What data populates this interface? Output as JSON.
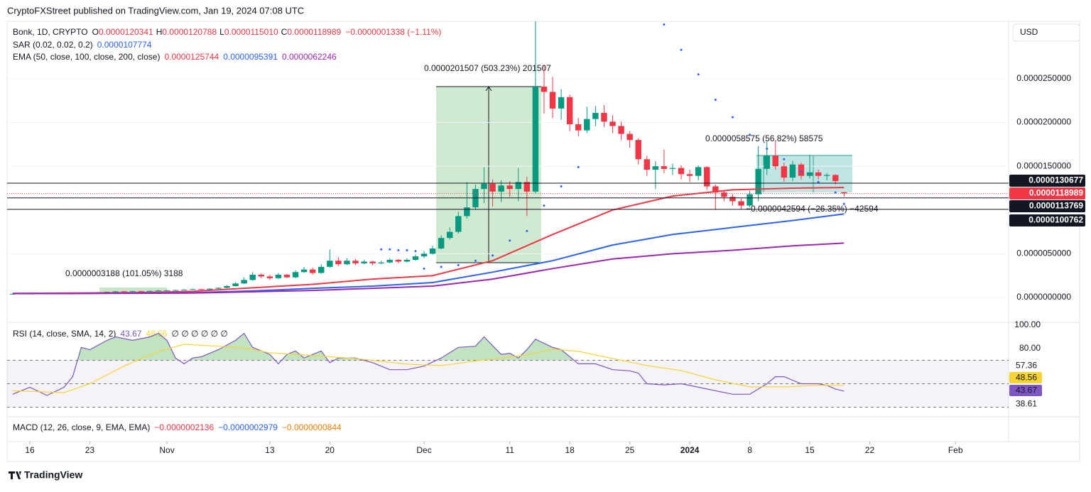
{
  "publisher": "CryptoFXStreet published on TradingView.com, Jan 19, 2024 07:08 UTC",
  "legend": {
    "symbol": "Bonk, 1D, CRYPTO",
    "ohlc": [
      {
        "key": "O",
        "value": "0.0000120341"
      },
      {
        "key": "H",
        "value": "0.0000120788"
      },
      {
        "key": "L",
        "value": "0.0000115010"
      },
      {
        "key": "C",
        "value": "0.0000118989"
      }
    ],
    "change": "−0.0000001338 (−1.11%)",
    "sar": {
      "label": "SAR (0.02, 0.02, 0.2)",
      "value": "0.0000107774"
    },
    "ema": {
      "label": "EMA (50, close, 100, close, 200, close)",
      "values": [
        "0.0000125744",
        "0.0000095391",
        "0.0000062246"
      ]
    }
  },
  "currency": "USD",
  "annotations": [
    "0.0000201507 (503.23%) 201507",
    "0.0000003188 (101.05%) 3188",
    "0.0000058575 (56.82%) 58575",
    "−0.0000042594 (−26.35%) −42594"
  ],
  "rsi_legend": {
    "label": "RSI (14, close, SMA, 14, 2)",
    "values": [
      "43.67",
      "48.56"
    ],
    "extra": "∅ ∅ ∅ ∅ ∅ ∅"
  },
  "macd_legend": {
    "label": "MACD (12, 26, close, 9, EMA, EMA)",
    "values": [
      "−0.0000002136",
      "−0.0000002979",
      "−0.0000000844"
    ]
  },
  "footer": "TradingView",
  "chart_data": [
    {
      "type": "candlestick",
      "up_color": "#089981",
      "down_color": "#f23645",
      "grid": true,
      "xlim": [
        -0.65,
        116.2
      ],
      "ylim": [
        -2.76e-06,
        3.157e-05
      ],
      "xticks": [
        {
          "value": 2,
          "label": "16"
        },
        {
          "value": 9,
          "label": "23"
        },
        {
          "value": 18,
          "label": "Nov"
        },
        {
          "value": 30,
          "label": "13"
        },
        {
          "value": 37,
          "label": "20"
        },
        {
          "value": 48,
          "label": "Dec"
        },
        {
          "value": 58,
          "label": "11"
        },
        {
          "value": 65,
          "label": "18"
        },
        {
          "value": 72,
          "label": "25"
        },
        {
          "value": 79,
          "label": "2024",
          "bold": true
        },
        {
          "value": 86,
          "label": "8"
        },
        {
          "value": 93,
          "label": "15"
        },
        {
          "value": 100,
          "label": "22"
        },
        {
          "value": 110,
          "label": "Feb"
        }
      ],
      "yticks": [
        {
          "value": 2.5e-05,
          "label": "0.0000250000"
        },
        {
          "value": 2e-05,
          "label": "0.0000200000"
        },
        {
          "value": 1.5e-05,
          "label": "0.0000150000"
        },
        {
          "value": 5e-06,
          "label": "0.0000050000"
        },
        {
          "value": 0,
          "label": "0.0000000000"
        }
      ],
      "open": [
        4e-07,
        4.2e-07,
        4.4e-07,
        4.3e-07,
        4.5e-07,
        4.4e-07,
        4.6e-07,
        4.5e-07,
        4.7e-07,
        5.2e-07,
        5.5e-07,
        6e-07,
        6.5e-07,
        7e-07,
        6.8e-07,
        7.2e-07,
        7e-07,
        7.5e-07,
        8e-07,
        8.2e-07,
        8.5e-07,
        9e-07,
        9.5e-07,
        9e-07,
        1e-06,
        1.1e-06,
        1.3e-06,
        1.6e-06,
        2e-06,
        2.6e-06,
        2.4e-06,
        2.2e-06,
        2.6e-06,
        2.3e-06,
        2.9e-06,
        3.2e-06,
        2.8e-06,
        3.5e-06,
        4.2e-06,
        3.8e-06,
        4.2e-06,
        3.9e-06,
        4.1e-06,
        3.9e-06,
        4e-06,
        4.3e-06,
        4.1e-06,
        4.3e-06,
        4.7e-06,
        5e-06,
        5.6e-06,
        6.8e-06,
        7.5e-06,
        9.3e-06,
        1.03e-05,
        1.24e-05,
        1.3e-05,
        1.21e-05,
        1.28e-05,
        1.24e-05,
        1.32e-05,
        1.21e-05,
        2.41e-05,
        2.35e-05,
        2.16e-05,
        2.29e-05,
        1.98e-05,
        1.91e-05,
        2.04e-05,
        2.11e-05,
        2.01e-05,
        1.96e-05,
        1.87e-05,
        1.8e-05,
        1.58e-05,
        1.46e-05,
        1.5e-05,
        1.47e-05,
        1.48e-05,
        1.41e-05,
        1.39e-05,
        1.49e-05,
        1.27e-05,
        1.2e-05,
        1.15e-05,
        1.1e-05,
        1.05e-05,
        1.18e-05,
        1.47e-05,
        1.62e-05,
        1.5e-05,
        1.37e-05,
        1.52e-05,
        1.39e-05,
        1.43e-05,
        1.39e-05,
        1.4e-05,
        1.20341e-05
      ],
      "high": [
        4.4e-07,
        4.6e-07,
        4.6e-07,
        4.7e-07,
        4.7e-07,
        4.8e-07,
        4.8e-07,
        4.9e-07,
        5.5e-07,
        5.8e-07,
        6.3e-07,
        6.8e-07,
        7.4e-07,
        7.4e-07,
        7.6e-07,
        7.5e-07,
        7.8e-07,
        8.4e-07,
        8.6e-07,
        9e-07,
        9.5e-07,
        1e-06,
        9.8e-07,
        1.05e-06,
        1.15e-06,
        1.4e-06,
        1.75e-06,
        2.3e-06,
        2.9e-06,
        2.8e-06,
        2.6e-06,
        2.8e-06,
        2.7e-06,
        3.1e-06,
        3.5e-06,
        3.4e-06,
        3.8e-06,
        5.5e-06,
        4.6e-06,
        4.5e-06,
        4.4e-06,
        4.3e-06,
        4.2e-06,
        4.2e-06,
        4.5e-06,
        4.4e-06,
        4.5e-06,
        4.9e-06,
        5.3e-06,
        5.9e-06,
        7.1e-06,
        8e-06,
        9.8e-06,
        1.32e-05,
        1.29e-05,
        1.49e-05,
        1.35e-05,
        1.34e-05,
        1.33e-05,
        1.48e-05,
        1.38e-05,
        3.16e-05,
        2.65e-05,
        2.52e-05,
        2.38e-05,
        2.32e-05,
        2.05e-05,
        2.18e-05,
        2.19e-05,
        2.2e-05,
        2.08e-05,
        2.01e-05,
        1.9e-05,
        1.82e-05,
        1.62e-05,
        1.56e-05,
        1.69e-05,
        1.53e-05,
        1.51e-05,
        1.46e-05,
        1.51e-05,
        1.5e-05,
        1.29e-05,
        1.23e-05,
        1.18e-05,
        1.13e-05,
        1.22e-05,
        1.73e-05,
        1.78e-05,
        1.79e-05,
        1.54e-05,
        1.56e-05,
        1.54e-05,
        1.63e-05,
        1.46e-05,
        1.42e-05,
        1.41e-05,
        1.20788e-05
      ],
      "low": [
        3.9e-07,
        4.1e-07,
        4.2e-07,
        4.2e-07,
        4.3e-07,
        4.3e-07,
        4.4e-07,
        4.4e-07,
        4.6e-07,
        5e-07,
        5.4e-07,
        5.8e-07,
        6.3e-07,
        6.5e-07,
        6.6e-07,
        6.8e-07,
        6.8e-07,
        7.3e-07,
        7.7e-07,
        8e-07,
        8.3e-07,
        8.8e-07,
        8.6e-07,
        8.8e-07,
        9.7e-07,
        1.05e-06,
        1.25e-06,
        1.55e-06,
        1.9e-06,
        2.2e-06,
        2e-06,
        2.1e-06,
        2.2e-06,
        2.2e-06,
        2.8e-06,
        2.6e-06,
        2.7e-06,
        3.4e-06,
        3.6e-06,
        3.7e-06,
        3.7e-06,
        3.8e-06,
        3.7e-06,
        3.8e-06,
        3.9e-06,
        3.9e-06,
        4e-06,
        4.2e-06,
        4.5e-06,
        4.9e-06,
        5.5e-06,
        6.6e-06,
        7.3e-06,
        9e-06,
        1e-05,
        1.08e-05,
        1.04e-05,
        1.09e-05,
        1.15e-05,
        1.1e-05,
        9.3e-06,
        1.19e-05,
        2.1e-05,
        2.05e-05,
        2.03e-05,
        1.9e-05,
        1.84e-05,
        1.88e-05,
        1.96e-05,
        1.95e-05,
        1.88e-05,
        1.8e-05,
        1.71e-05,
        1.52e-05,
        1.39e-05,
        1.24e-05,
        1.42e-05,
        1.4e-05,
        1.35e-05,
        1.32e-05,
        1.34e-05,
        1.23e-05,
        1e-05,
        1.1e-05,
        1.05e-05,
        1.01e-05,
        1.03e-05,
        1.1e-05,
        1.4e-05,
        1.46e-05,
        1.32e-05,
        1.33e-05,
        1.35e-05,
        1.36e-05,
        1.35e-05,
        1.34e-05,
        1.29e-05,
        1.1501e-05
      ],
      "close": [
        4.2e-07,
        4.4e-07,
        4.3e-07,
        4.5e-07,
        4.4e-07,
        4.6e-07,
        4.5e-07,
        4.7e-07,
        5.2e-07,
        5.5e-07,
        6e-07,
        6.5e-07,
        7e-07,
        6.8e-07,
        7.2e-07,
        7e-07,
        7.5e-07,
        8e-07,
        8.2e-07,
        8.5e-07,
        9e-07,
        9.5e-07,
        9e-07,
        1e-06,
        1.1e-06,
        1.3e-06,
        1.6e-06,
        2e-06,
        2.6e-06,
        2.4e-06,
        2.2e-06,
        2.6e-06,
        2.3e-06,
        2.9e-06,
        3.2e-06,
        2.8e-06,
        3.5e-06,
        4.2e-06,
        3.8e-06,
        4.2e-06,
        3.9e-06,
        4.1e-06,
        3.9e-06,
        4e-06,
        4.3e-06,
        4.1e-06,
        4.3e-06,
        4.7e-06,
        5e-06,
        5.6e-06,
        6.8e-06,
        7.5e-06,
        9.3e-06,
        1.03e-05,
        1.24e-05,
        1.3e-05,
        1.21e-05,
        1.28e-05,
        1.24e-05,
        1.32e-05,
        1.21e-05,
        2.41e-05,
        2.35e-05,
        2.16e-05,
        2.29e-05,
        1.98e-05,
        1.91e-05,
        2.04e-05,
        2.11e-05,
        2.01e-05,
        1.96e-05,
        1.87e-05,
        1.8e-05,
        1.58e-05,
        1.46e-05,
        1.5e-05,
        1.47e-05,
        1.48e-05,
        1.41e-05,
        1.39e-05,
        1.49e-05,
        1.27e-05,
        1.2e-05,
        1.15e-05,
        1.1e-05,
        1.05e-05,
        1.18e-05,
        1.47e-05,
        1.62e-05,
        1.5e-05,
        1.37e-05,
        1.52e-05,
        1.39e-05,
        1.43e-05,
        1.39e-05,
        1.4e-05,
        1.33e-05,
        1.18989e-05
      ],
      "overlays": [
        {
          "style": "line",
          "color": "#f23645",
          "x": [
            0,
            7,
            14,
            21,
            28,
            35,
            42,
            49,
            56,
            63,
            70,
            77,
            84,
            91,
            97
          ],
          "values": [
            4.5e-07,
            5e-07,
            5.5e-07,
            7e-07,
            1.1e-06,
            1.5e-06,
            2.1e-06,
            2.5e-06,
            4.2e-06,
            7.2e-06,
            1e-05,
            1.16e-05,
            1.23e-05,
            1.25e-05,
            1.257e-05
          ]
        },
        {
          "style": "line",
          "color": "#2962ff",
          "x": [
            0,
            7,
            14,
            21,
            28,
            35,
            42,
            49,
            56,
            63,
            70,
            77,
            84,
            91,
            97
          ],
          "values": [
            4.5e-07,
            4.5e-07,
            5e-07,
            5.5e-07,
            7.5e-07,
            1.05e-06,
            1.3e-06,
            1.7e-06,
            2.9e-06,
            4.2e-06,
            6e-06,
            7.2e-06,
            8e-06,
            8.8e-06,
            9.54e-06
          ]
        },
        {
          "style": "line",
          "color": "#9c27b0",
          "x": [
            0,
            7,
            14,
            21,
            28,
            35,
            42,
            49,
            56,
            63,
            70,
            77,
            84,
            91,
            97
          ],
          "values": [
            4.5e-07,
            4.5e-07,
            4.8e-07,
            5e-07,
            6.5e-07,
            8e-07,
            1.05e-06,
            1.3e-06,
            2.1e-06,
            3.3e-06,
            4.4e-06,
            5e-06,
            5.4e-06,
            5.9e-06,
            6.22e-06
          ]
        },
        {
          "style": "dots",
          "color": "#2962ff",
          "x": [
            43,
            44,
            45,
            46,
            47,
            48,
            50,
            52,
            54,
            56,
            58,
            60,
            62,
            64,
            66,
            76,
            78,
            80,
            82,
            84,
            86,
            88,
            90,
            92,
            94,
            96,
            97
          ],
          "values": [
            5.5e-06,
            5.5e-06,
            5.4e-06,
            5.4e-06,
            5.3e-06,
            3.3e-06,
            3.5e-06,
            3.7e-06,
            4.2e-06,
            4.8e-06,
            6.5e-06,
            7.6e-06,
            1.05e-05,
            1.27e-05,
            1.49e-05,
            3.12e-05,
            2.83e-05,
            2.55e-05,
            2.26e-05,
            2.06e-05,
            1.86e-05,
            1.7e-05,
            1.58e-05,
            1.44e-05,
            1.32e-05,
            1.2e-05,
            1.07e-05
          ]
        }
      ],
      "price_lines": [
        {
          "value": 1.30677e-05,
          "label": "0.0000130677",
          "color": "#131722",
          "style": "solid"
        },
        {
          "value": 1.18989e-05,
          "label": "0.0000118989",
          "color": "#f23645",
          "style": "dotted"
        },
        {
          "value": 1.13769e-05,
          "label": "0.0000113769",
          "color": "#131722",
          "style": "solid"
        },
        {
          "value": 1.00762e-05,
          "label": "0.0000100762",
          "color": "#131722",
          "style": "solid"
        }
      ]
    },
    {
      "type": "line",
      "xlim": [
        -0.65,
        116.2
      ],
      "ylim": [
        23.0,
        101.8
      ],
      "yticks": [
        {
          "value": 100,
          "label": "100.00"
        },
        {
          "value": 80,
          "label": "80.00"
        }
      ],
      "levels": [
        70,
        50,
        30
      ],
      "overbought": 70,
      "series": [
        {
          "color": "#7e57c2",
          "x": [
            0,
            2,
            4,
            6,
            7,
            8,
            9,
            11,
            12,
            14,
            16,
            17,
            18,
            19,
            20,
            21,
            22,
            24,
            26,
            27,
            28,
            29,
            30,
            31,
            32,
            33,
            34,
            36,
            37,
            38,
            40,
            42,
            44,
            46,
            48,
            50,
            52,
            54,
            55,
            57,
            58,
            59,
            60,
            61,
            63,
            64,
            66,
            68,
            70,
            72,
            73,
            74,
            76,
            78,
            80,
            82,
            84,
            86,
            88,
            89,
            90,
            92,
            94,
            95,
            96,
            97
          ],
          "values": [
            41,
            47,
            40,
            47,
            56,
            81,
            79,
            87,
            90,
            87,
            90,
            93,
            87,
            72,
            67,
            72,
            73,
            79,
            87,
            93,
            81,
            78,
            75,
            67,
            75,
            78,
            72,
            78,
            68,
            72,
            72,
            68,
            62,
            62,
            65,
            72,
            81,
            82,
            90,
            75,
            76,
            72,
            79,
            88,
            81,
            79,
            67,
            67,
            62,
            61,
            59,
            50,
            49,
            50,
            47,
            44,
            41,
            41,
            50,
            56,
            56,
            50,
            50,
            48.5,
            45.5,
            43.67
          ]
        },
        {
          "color": "#f7d534",
          "x": [
            0,
            6,
            9,
            13,
            17,
            20,
            24,
            27,
            30,
            34,
            40,
            46,
            50,
            55,
            60,
            63,
            66,
            70,
            74,
            78,
            82,
            86,
            90,
            94,
            97
          ],
          "values": [
            44,
            42.4,
            50,
            65,
            77.6,
            83.6,
            82,
            80.6,
            76.4,
            74.5,
            71.5,
            66.7,
            65.5,
            70.3,
            74.5,
            79.4,
            77.6,
            71.5,
            65.5,
            61.2,
            53.3,
            47.3,
            47.3,
            48.5,
            48.56
          ]
        }
      ],
      "axis_labels": [
        {
          "value": 57.36
        },
        {
          "value": 48.56,
          "color": "#f7d534"
        },
        {
          "value": 43.67,
          "color": "#7e57c2"
        },
        {
          "value": 38.61
        }
      ]
    }
  ]
}
